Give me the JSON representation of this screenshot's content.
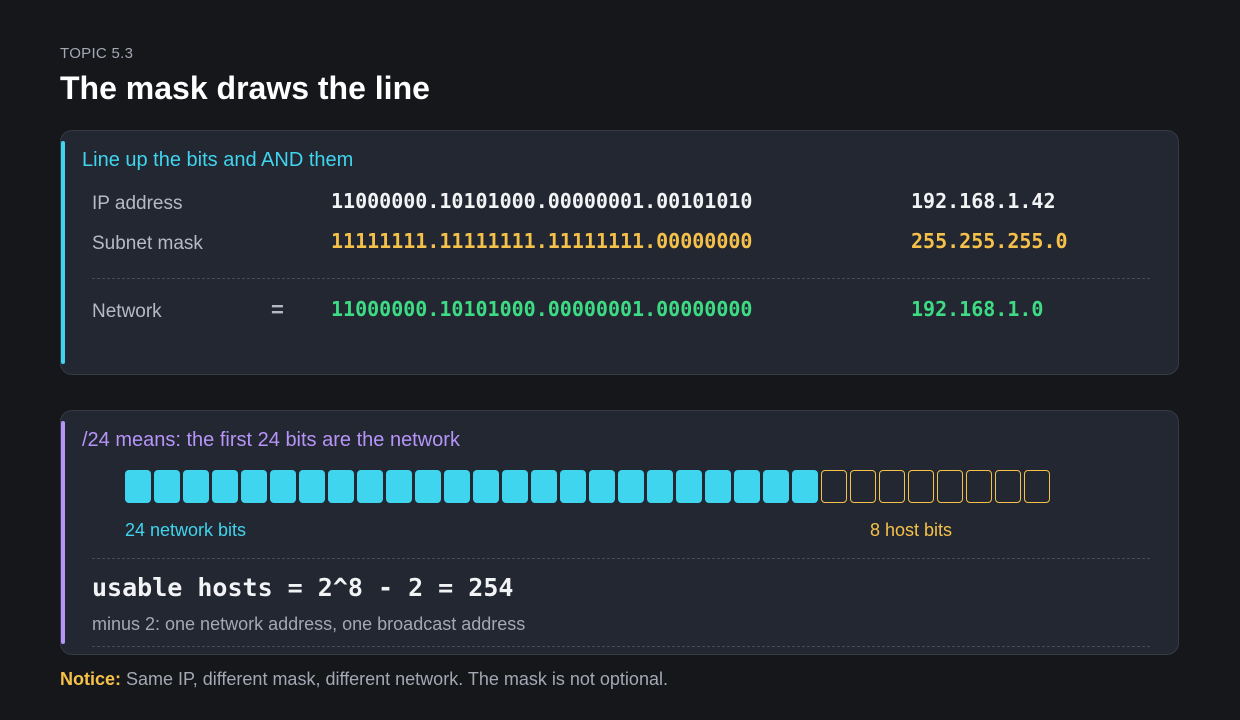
{
  "header": {
    "eyebrow": "TOPIC 5.3",
    "title": "The mask draws the line"
  },
  "and_card": {
    "heading": "Line up the bits and AND them",
    "accent_color": "#3fd5ee",
    "rows": [
      {
        "label": "IP address",
        "operator": "",
        "binary": "11000000.10101000.00000001.00101010",
        "decimal": "192.168.1.42",
        "color": "#f2f3f5"
      },
      {
        "label": "Subnet mask",
        "operator": "",
        "binary": "11111111.11111111.11111111.00000000",
        "decimal": "255.255.255.0",
        "color": "#f6c14a"
      },
      {
        "label": "Network",
        "operator": "=",
        "binary": "11000000.10101000.00000001.00000000",
        "decimal": "192.168.1.0",
        "color": "#3ddc84"
      }
    ]
  },
  "prefix_card": {
    "heading": "/24 means: the first 24 bits are the network",
    "accent_color": "#b694f8",
    "network_bits": 24,
    "host_bits": 8,
    "network_label": "24 network bits",
    "host_label": "8 host bits",
    "formula": "usable hosts = 2^8 - 2 = 254",
    "formula_note": "minus 2: one network address, one broadcast address"
  },
  "notice": {
    "label": "Notice:",
    "text": " Same IP, different mask, different network. The mask is not optional."
  },
  "colors": {
    "background": "#15171b",
    "card": "#232731",
    "cyan": "#3fd5ee",
    "yellow": "#f6c14a",
    "green": "#3ddc84",
    "purple": "#b694f8"
  }
}
